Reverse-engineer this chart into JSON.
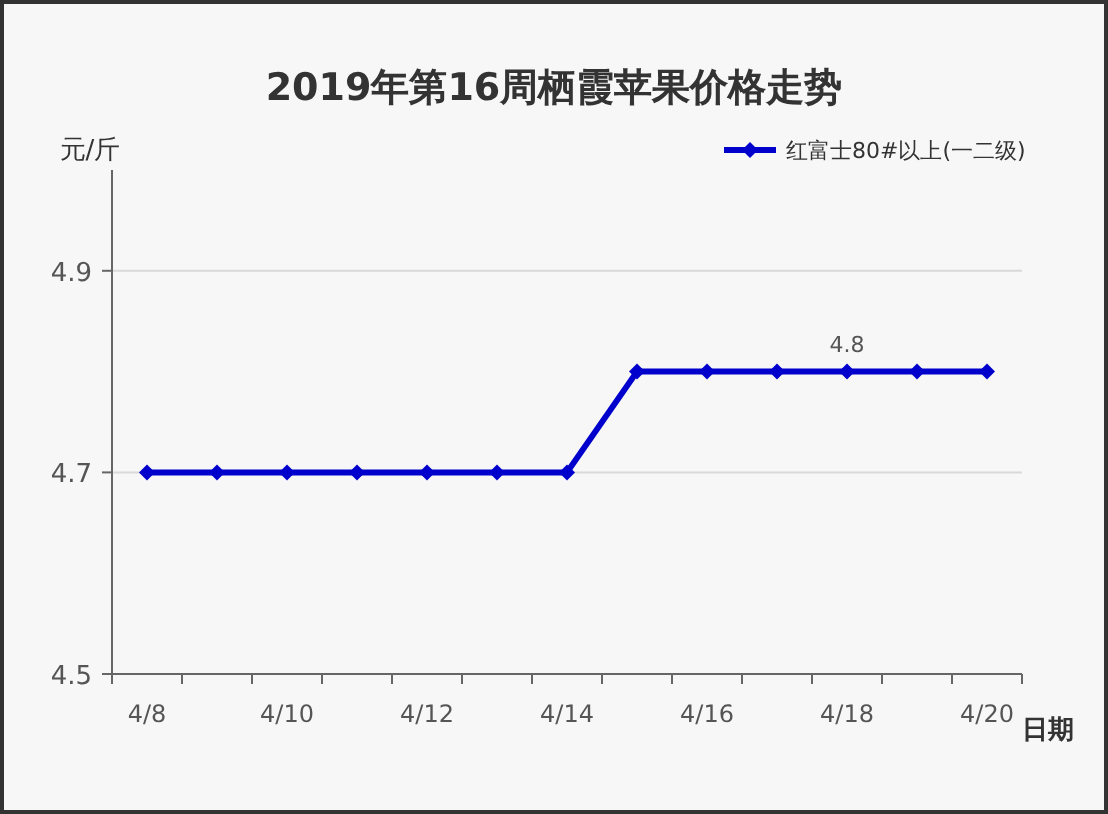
{
  "chart_data": {
    "type": "line",
    "title": "2019年第16周栖霞苹果价格走势",
    "ylabel": "元/斤",
    "xlabel": "日期",
    "categories": [
      "4/8",
      null,
      "4/10",
      null,
      "4/12",
      null,
      "4/14",
      null,
      "4/16",
      null,
      "4/18",
      null,
      "4/20"
    ],
    "series": [
      {
        "name": "红富士80#以上(一二级)",
        "color": "#0000cc",
        "values": [
          4.7,
          4.7,
          4.7,
          4.7,
          4.7,
          4.7,
          4.7,
          4.8,
          4.8,
          4.8,
          4.8,
          4.8,
          4.8
        ],
        "value_labels": [
          null,
          null,
          null,
          null,
          null,
          null,
          null,
          null,
          null,
          null,
          "4.8",
          null,
          null
        ]
      }
    ],
    "ylim": [
      4.5,
      5.0
    ],
    "yticks": [
      4.5,
      4.7,
      4.9
    ],
    "grid": "y",
    "legend": "top right",
    "marker": "diamond",
    "line_style": "solid"
  }
}
